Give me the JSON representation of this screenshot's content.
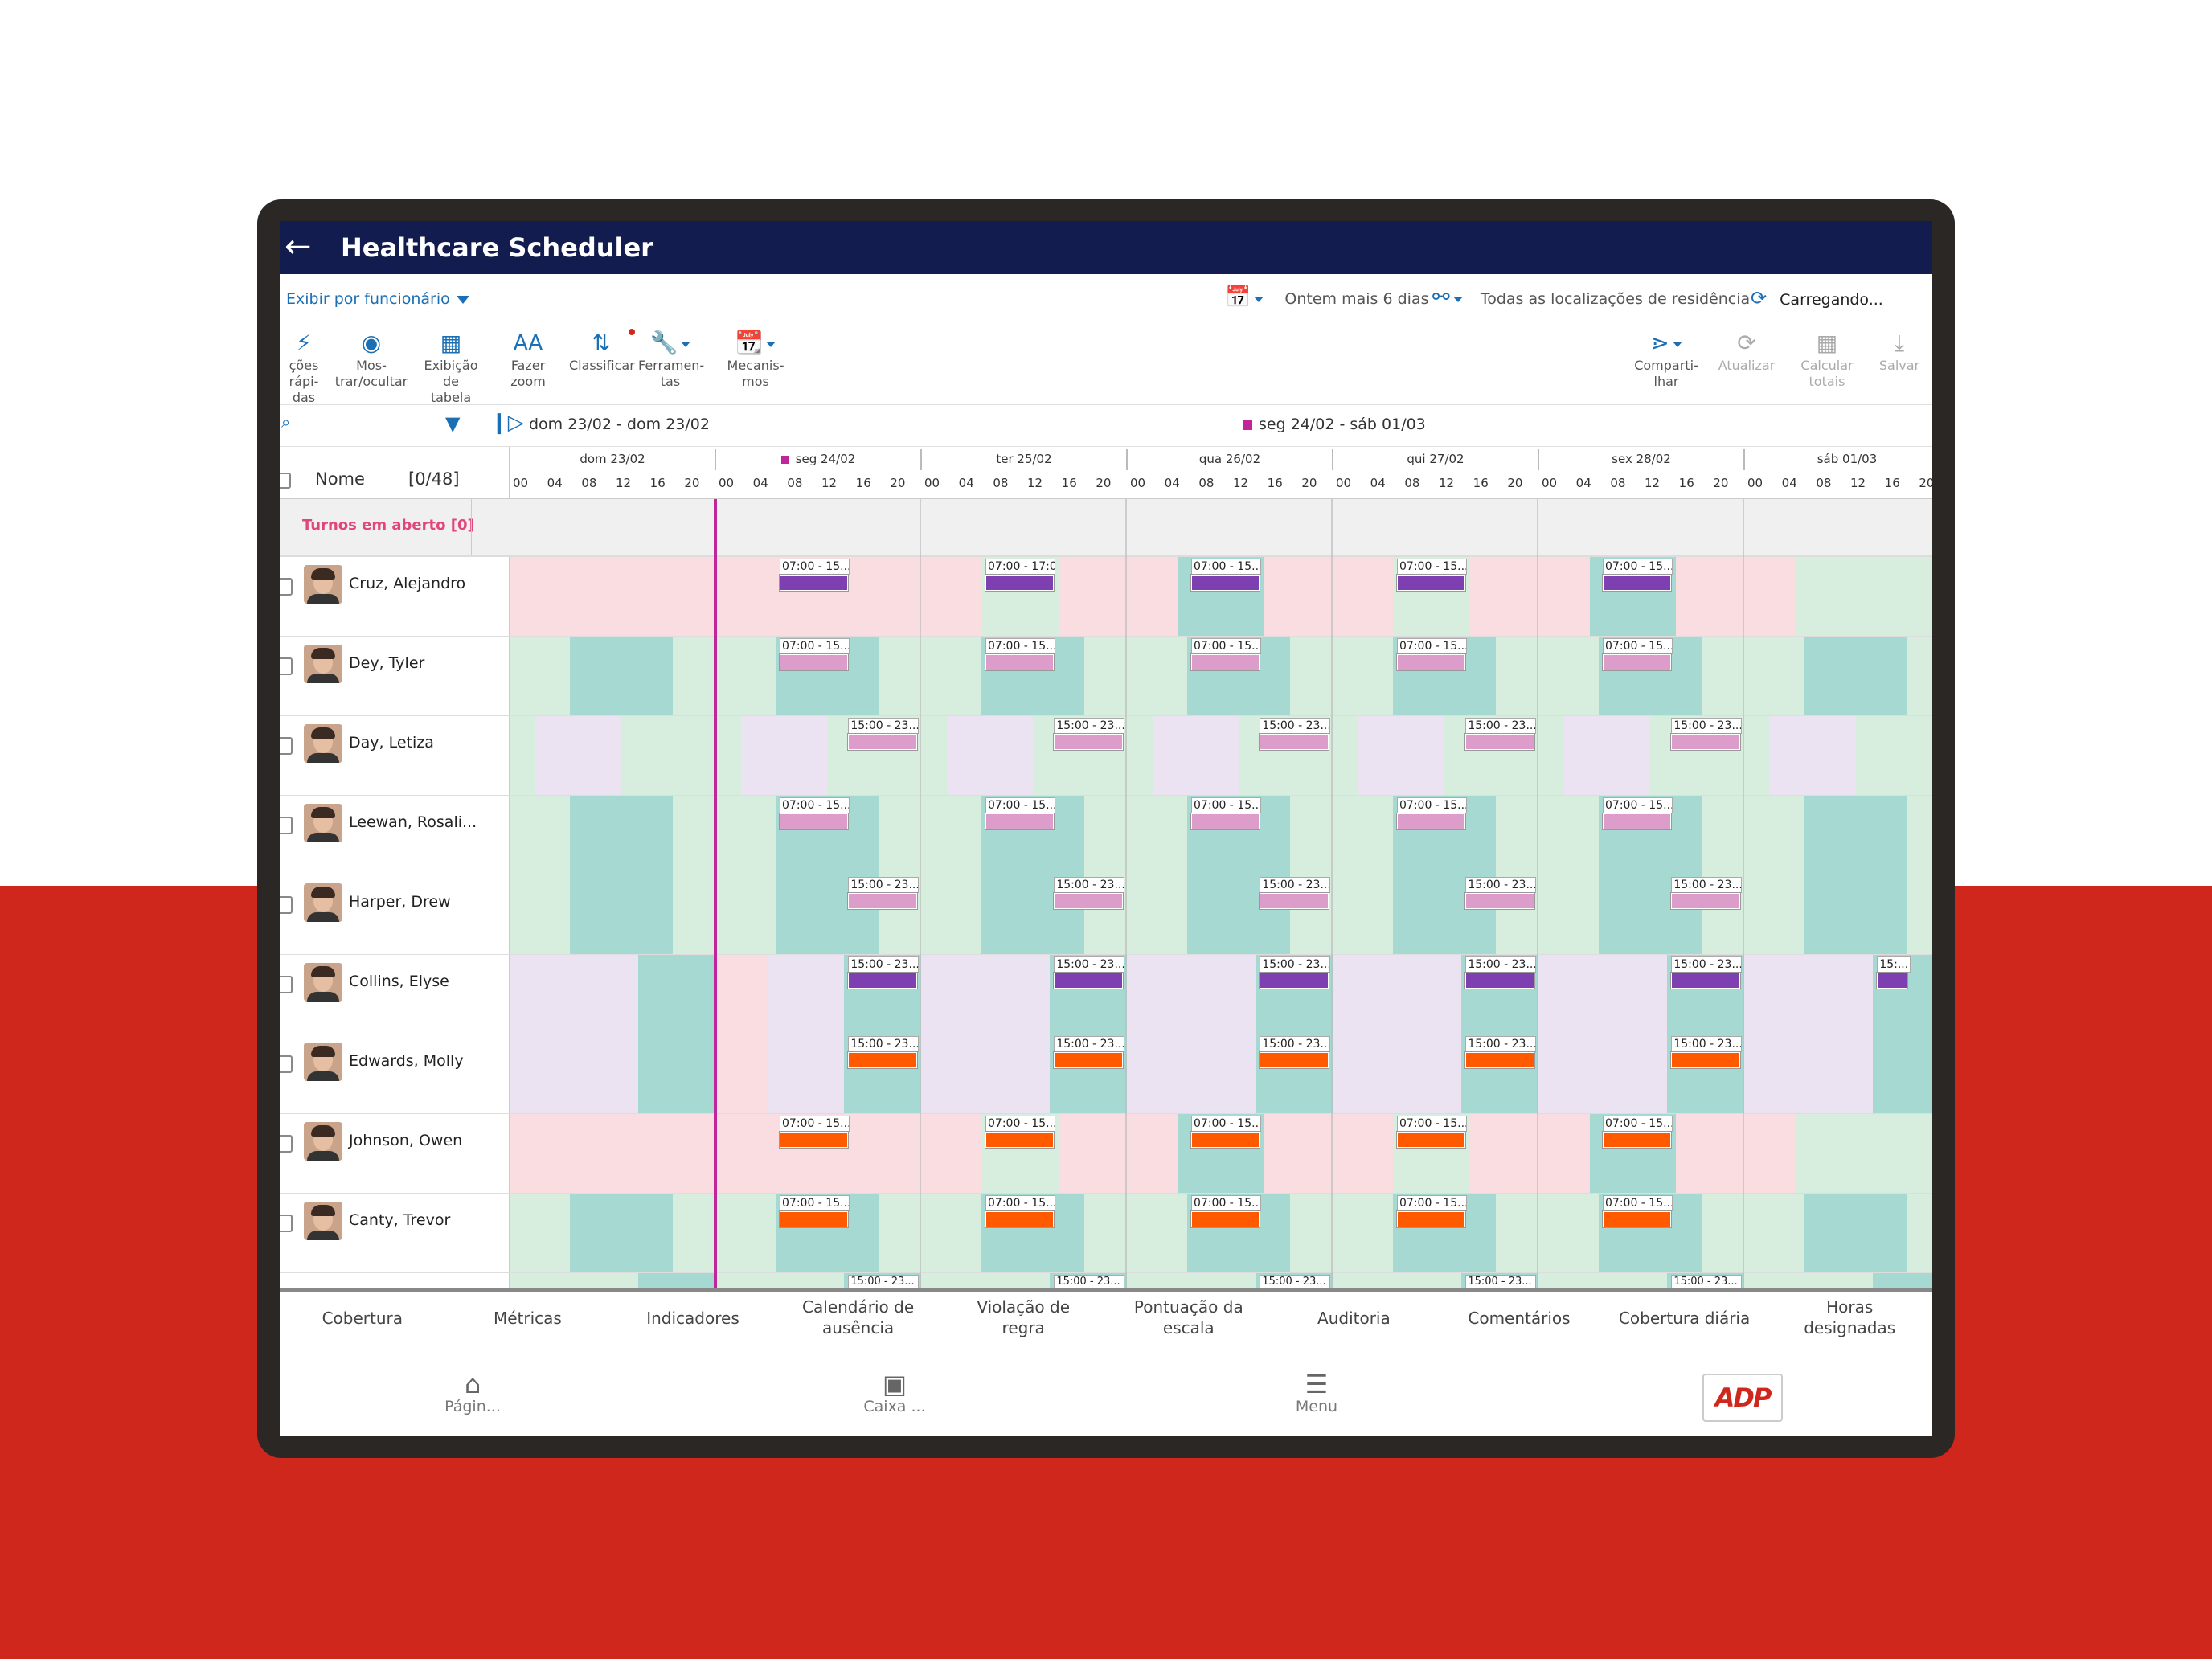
{
  "app": {
    "title": "Healthcare Scheduler",
    "view_by": "Exibir por funcionário",
    "date_range": "Ontem mais 6 dias",
    "locations": "Todas as localizações de residência",
    "loading": "Carregando..."
  },
  "toolbar": {
    "left": [
      {
        "label1": "ções rápi-",
        "label2": "das",
        "icon": "lightning-icon"
      },
      {
        "label1": "Mos-",
        "label2": "trar/ocultar",
        "icon": "eye-icon"
      },
      {
        "label1": "Exibição de",
        "label2": "tabela",
        "icon": "table-icon"
      },
      {
        "label1": "Fazer zoom",
        "label2": "",
        "icon": "zoom-text-icon"
      },
      {
        "label1": "Classificar",
        "label2": "",
        "icon": "sort-icon"
      },
      {
        "label1": "Ferramen-",
        "label2": "tas",
        "icon": "wrench-icon"
      },
      {
        "label1": "Mecanis-",
        "label2": "mos",
        "icon": "calendar-gear-icon"
      }
    ],
    "right": [
      {
        "label1": "Comparti-",
        "label2": "lhar",
        "icon": "share-icon"
      },
      {
        "label1": "Atualizar",
        "label2": "",
        "icon": "refresh-icon"
      },
      {
        "label1": "Calcular",
        "label2": "totais",
        "icon": "calculator-icon"
      },
      {
        "label1": "Salvar",
        "label2": "",
        "icon": "save-icon"
      }
    ]
  },
  "range": {
    "prev": "dom 23/02 - dom 23/02",
    "current": "seg 24/02 - sáb 01/03"
  },
  "header": {
    "name_col": "Nome",
    "count": "[0/48]",
    "days": [
      "dom 23/02",
      "seg 24/02",
      "ter 25/02",
      "qua 26/02",
      "qui 27/02",
      "sex 28/02",
      "sáb 01/03"
    ],
    "hours": [
      "00",
      "04",
      "08",
      "12",
      "16",
      "20"
    ]
  },
  "open_shifts": "Turnos em aberto [0]",
  "employees": [
    {
      "name": "Cruz, Alejandro",
      "shift": "07:00 - 15...",
      "shift_alt": "07:00 - 17:00",
      "type": "day",
      "bar": "#7e3fb0",
      "bg": "pink"
    },
    {
      "name": "Dey, Tyler",
      "shift": "07:00 - 15...",
      "type": "day",
      "bar": "#dd9dcb",
      "bg": "green"
    },
    {
      "name": "Day, Letiza",
      "shift": "15:00 - 23...",
      "type": "eve",
      "bar": "#dd9dcb",
      "bg": "lav"
    },
    {
      "name": "Leewan, Rosali...",
      "shift": "07:00 - 15...",
      "type": "day",
      "bar": "#dd9dcb",
      "bg": "green"
    },
    {
      "name": "Harper, Drew",
      "shift": "15:00 - 23...",
      "type": "eve",
      "bar": "#dd9dcb",
      "bg": "green"
    },
    {
      "name": "Collins, Elyse",
      "shift": "15:00 - 23...",
      "shift_last": "15:...",
      "type": "eve",
      "bar": "#7e3fb0",
      "bg": "lav"
    },
    {
      "name": "Edwards, Molly",
      "shift": "15:00 - 23...",
      "type": "eve",
      "bar": "#ff5a00",
      "bg": "lav"
    },
    {
      "name": "Johnson, Owen",
      "shift": "07:00 - 15...",
      "type": "day",
      "bar": "#ff5a00",
      "bg": "pink"
    },
    {
      "name": "Canty, Trevor",
      "shift": "07:00 - 15...",
      "type": "day",
      "bar": "#ff5a00",
      "bg": "green"
    }
  ],
  "partial_row_shift": "15:00 - 23...",
  "bottom_tabs": [
    {
      "l1": "Cobertura",
      "l2": ""
    },
    {
      "l1": "Métricas",
      "l2": ""
    },
    {
      "l1": "Indicadores",
      "l2": ""
    },
    {
      "l1": "Calendário de",
      "l2": "ausência"
    },
    {
      "l1": "Violação de",
      "l2": "regra"
    },
    {
      "l1": "Pontuação da",
      "l2": "escala"
    },
    {
      "l1": "Auditoria",
      "l2": ""
    },
    {
      "l1": "Comentários",
      "l2": ""
    },
    {
      "l1": "Cobertura diária",
      "l2": ""
    },
    {
      "l1": "Horas",
      "l2": "designadas"
    }
  ],
  "nav": {
    "home": "Págin...",
    "inbox": "Caixa ...",
    "menu": "Menu",
    "logo": "ADP"
  },
  "colors": {
    "header_bg": "#131c4f",
    "accent_blue": "#1a6fb5",
    "now_line": "#c0259c",
    "pink_bg": "#fadde0",
    "green_bg": "#d7eedf",
    "teal_bg": "#a6d9d2",
    "lav_bg": "#ece3f2"
  }
}
